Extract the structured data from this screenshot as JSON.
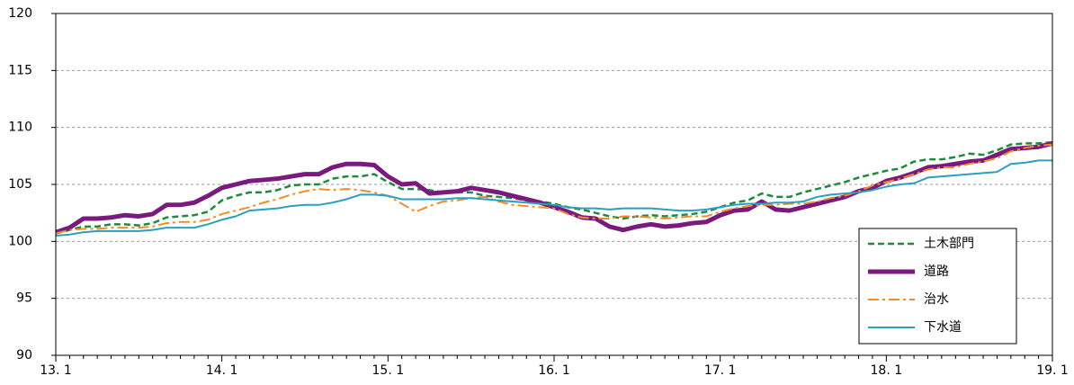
{
  "chart_data": {
    "type": "line",
    "categories": [
      "13. 1",
      null,
      null,
      null,
      null,
      null,
      null,
      null,
      null,
      null,
      null,
      null,
      "14. 1",
      null,
      null,
      null,
      null,
      null,
      null,
      null,
      null,
      null,
      null,
      null,
      "15. 1",
      null,
      null,
      null,
      null,
      null,
      null,
      null,
      null,
      null,
      null,
      null,
      "16. 1",
      null,
      null,
      null,
      null,
      null,
      null,
      null,
      null,
      null,
      null,
      null,
      "17. 1",
      null,
      null,
      null,
      null,
      null,
      null,
      null,
      null,
      null,
      null,
      null,
      "18. 1",
      null,
      null,
      null,
      null,
      null,
      null,
      null,
      null,
      null,
      null,
      null,
      "19. 1"
    ],
    "ylim": [
      90,
      120
    ],
    "yticks": [
      90,
      95,
      100,
      105,
      110,
      115,
      120
    ],
    "grid": true,
    "legend": "lower right",
    "series": [
      {
        "name": "土木部門",
        "color": "#1e8a3c",
        "style": "dashed",
        "width": 2.5,
        "values": [
          100.7,
          101.0,
          101.3,
          101.3,
          101.5,
          101.5,
          101.4,
          101.6,
          102.1,
          102.2,
          102.3,
          102.6,
          103.6,
          104.0,
          104.3,
          104.3,
          104.5,
          104.9,
          105.0,
          105.0,
          105.5,
          105.7,
          105.7,
          105.9,
          105.2,
          104.6,
          104.6,
          104.5,
          104.3,
          104.3,
          104.3,
          104.0,
          103.9,
          103.8,
          103.6,
          103.5,
          103.3,
          103.0,
          102.8,
          102.5,
          102.2,
          102.0,
          102.2,
          102.3,
          102.2,
          102.3,
          102.4,
          102.6,
          103.0,
          103.4,
          103.6,
          104.2,
          103.9,
          103.9,
          104.3,
          104.6,
          104.9,
          105.2,
          105.6,
          105.9,
          106.2,
          106.4,
          107.0,
          107.2,
          107.2,
          107.4,
          107.7,
          107.6,
          108.0,
          108.5,
          108.6,
          108.6,
          108.7
        ]
      },
      {
        "name": "道路",
        "color": "#7b1a7e",
        "style": "solid",
        "width": 5,
        "values": [
          100.8,
          101.2,
          102.0,
          102.0,
          102.1,
          102.3,
          102.2,
          102.4,
          103.2,
          103.2,
          103.4,
          104.0,
          104.7,
          105.0,
          105.3,
          105.4,
          105.5,
          105.7,
          105.9,
          105.9,
          106.5,
          106.8,
          106.8,
          106.7,
          105.7,
          105.0,
          105.1,
          104.2,
          104.3,
          104.4,
          104.7,
          104.5,
          104.3,
          104.0,
          103.7,
          103.4,
          103.0,
          102.6,
          102.1,
          102.0,
          101.3,
          101.0,
          101.3,
          101.5,
          101.3,
          101.4,
          101.6,
          101.7,
          102.3,
          102.7,
          102.8,
          103.5,
          102.8,
          102.7,
          103.0,
          103.3,
          103.6,
          103.9,
          104.4,
          104.7,
          105.3,
          105.6,
          106.0,
          106.5,
          106.6,
          106.8,
          107.0,
          107.1,
          107.6,
          108.1,
          108.2,
          108.3,
          108.6
        ]
      },
      {
        "name": "治水",
        "color": "#f28c28",
        "style": "dashdot",
        "width": 2,
        "values": [
          100.7,
          101.0,
          101.1,
          101.1,
          101.2,
          101.2,
          101.2,
          101.3,
          101.6,
          101.7,
          101.7,
          101.9,
          102.4,
          102.7,
          103.0,
          103.4,
          103.7,
          104.1,
          104.4,
          104.6,
          104.5,
          104.6,
          104.5,
          104.3,
          104.0,
          103.3,
          102.6,
          103.1,
          103.5,
          103.6,
          103.8,
          103.9,
          103.5,
          103.2,
          103.1,
          103.0,
          102.9,
          102.4,
          102.1,
          102.0,
          102.0,
          102.2,
          102.2,
          102.1,
          102.0,
          102.1,
          102.2,
          102.2,
          102.6,
          102.9,
          103.1,
          103.2,
          103.2,
          103.3,
          103.3,
          103.5,
          103.8,
          104.0,
          104.4,
          104.9,
          105.2,
          105.5,
          105.9,
          106.3,
          106.5,
          106.5,
          106.8,
          107.0,
          107.3,
          107.9,
          108.2,
          108.4,
          108.5
        ]
      },
      {
        "name": "下水道",
        "color": "#2a9fc0",
        "style": "solid",
        "width": 2,
        "values": [
          100.5,
          100.6,
          100.8,
          100.9,
          100.9,
          100.9,
          100.9,
          101.0,
          101.2,
          101.2,
          101.2,
          101.5,
          101.9,
          102.2,
          102.7,
          102.8,
          102.9,
          103.1,
          103.2,
          103.2,
          103.4,
          103.7,
          104.1,
          104.1,
          104.0,
          103.7,
          103.7,
          103.7,
          103.7,
          103.8,
          103.8,
          103.7,
          103.6,
          103.5,
          103.4,
          103.3,
          103.2,
          103.0,
          102.9,
          102.9,
          102.8,
          102.9,
          102.9,
          102.9,
          102.8,
          102.7,
          102.7,
          102.8,
          103.0,
          103.2,
          103.3,
          103.3,
          103.4,
          103.4,
          103.5,
          103.9,
          104.1,
          104.2,
          104.3,
          104.5,
          104.8,
          105.0,
          105.1,
          105.6,
          105.7,
          105.8,
          105.9,
          106.0,
          106.1,
          106.8,
          106.9,
          107.1,
          107.1
        ]
      }
    ]
  }
}
